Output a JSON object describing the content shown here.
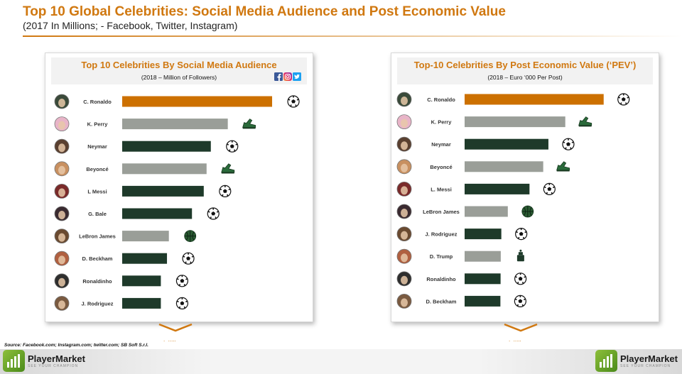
{
  "header": {
    "title": "Top 10 Global Celebrities: Social Media Audience and Post Economic Value",
    "subtitle": "(2017 In Millions; - Facebook, Twitter, Instagram)"
  },
  "source": "Source: Facebook.com; Instagram.com; twitter.com; SB Soft S.r.l.",
  "brand": {
    "name": "PlayerMarket",
    "tagline": "SEE YOUR CHAMPION",
    "green": "#6aa82a"
  },
  "colors": {
    "accent": "#d07810",
    "highlight_bar": "#cc7000",
    "dark_bar": "#1e3a2a",
    "gray_bar": "#9a9e98"
  },
  "social_icons": [
    "facebook-icon",
    "instagram-icon",
    "twitter-icon"
  ],
  "chart_data": [
    {
      "type": "bar",
      "orientation": "horizontal",
      "title": "Top 10 Celebrities By Social Media Audience",
      "subtitle": "(2018 – Million of Followers)",
      "categories": [
        "C. Ronaldo",
        "K. Perry",
        "Neymar",
        "Beyoncé",
        "L Messi",
        "G. Bale",
        "LeBron James",
        "D. Beckham",
        "Ronaldinho",
        "J. Rodriguez"
      ],
      "values": [
        318,
        224,
        188,
        179,
        173,
        148,
        99,
        95,
        82,
        82
      ],
      "xlim": [
        0,
        330
      ],
      "bar_colors": [
        "highlight",
        "gray",
        "dark",
        "gray",
        "dark",
        "dark",
        "gray",
        "dark",
        "dark",
        "dark"
      ],
      "category_icons": [
        "soccer-ball-icon",
        "shoe-icon",
        "soccer-ball-icon",
        "shoe-icon",
        "soccer-ball-icon",
        "soccer-ball-icon",
        "basketball-icon",
        "soccer-ball-icon",
        "soccer-ball-icon",
        "soccer-ball-icon"
      ],
      "grid": false,
      "legend": "none"
    },
    {
      "type": "bar",
      "orientation": "horizontal",
      "title": "Top-10 Celebrities By Post Economic Value (‘PEV’)",
      "subtitle": "(2018 – Euro ‘000 Per Post)",
      "categories": [
        "C. Ronaldo",
        "K. Perry",
        "Neymar",
        "Beyoncé",
        "L. Messi",
        "LeBron James",
        "J. Rodriguez",
        "D. Trump",
        "Ronaldinho",
        "D. Beckham"
      ],
      "values": [
        750,
        543,
        452,
        424,
        350,
        233,
        198,
        195,
        194,
        193
      ],
      "xlim": [
        0,
        820
      ],
      "bar_colors": [
        "highlight",
        "gray",
        "dark",
        "gray",
        "dark",
        "gray",
        "dark",
        "gray",
        "dark",
        "dark"
      ],
      "category_icons": [
        "soccer-ball-icon",
        "shoe-icon",
        "soccer-ball-icon",
        "shoe-icon",
        "soccer-ball-icon",
        "basketball-icon",
        "soccer-ball-icon",
        "podium-icon",
        "soccer-ball-icon",
        "soccer-ball-icon"
      ],
      "grid": false,
      "legend": "none"
    }
  ]
}
